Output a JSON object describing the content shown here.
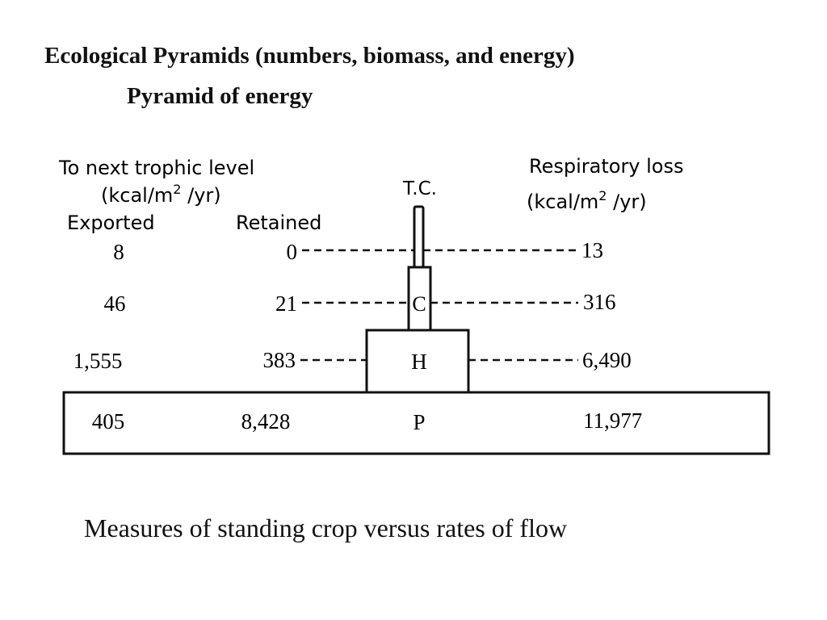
{
  "title": "Ecological Pyramids (numbers, biomass, and energy)",
  "subtitle": "Pyramid of  energy",
  "caption": "Measures of standing crop versus rates of flow",
  "diagram": {
    "left_header": {
      "line1": "To next trophic level",
      "line2": "(kcal/m",
      "line2_sup": "2",
      "line2_end": " /yr)"
    },
    "right_header": {
      "line1": "Respiratory loss",
      "line2": "(kcal/m",
      "line2_sup": "2",
      "line2_end": " /yr)"
    },
    "col_exported": "Exported",
    "col_retained": "Retained",
    "top_label": "T.C.",
    "levels": [
      {
        "level": "T.C.",
        "exported": "8",
        "retained": "0",
        "respiratory": "13"
      },
      {
        "level": "C",
        "exported": "46",
        "retained": "21",
        "respiratory": "316"
      },
      {
        "level": "H",
        "exported": "1,555",
        "retained": "383",
        "respiratory": "6,490"
      },
      {
        "level": "P",
        "exported": "405",
        "retained": "8,428",
        "respiratory": "11,977"
      }
    ]
  }
}
